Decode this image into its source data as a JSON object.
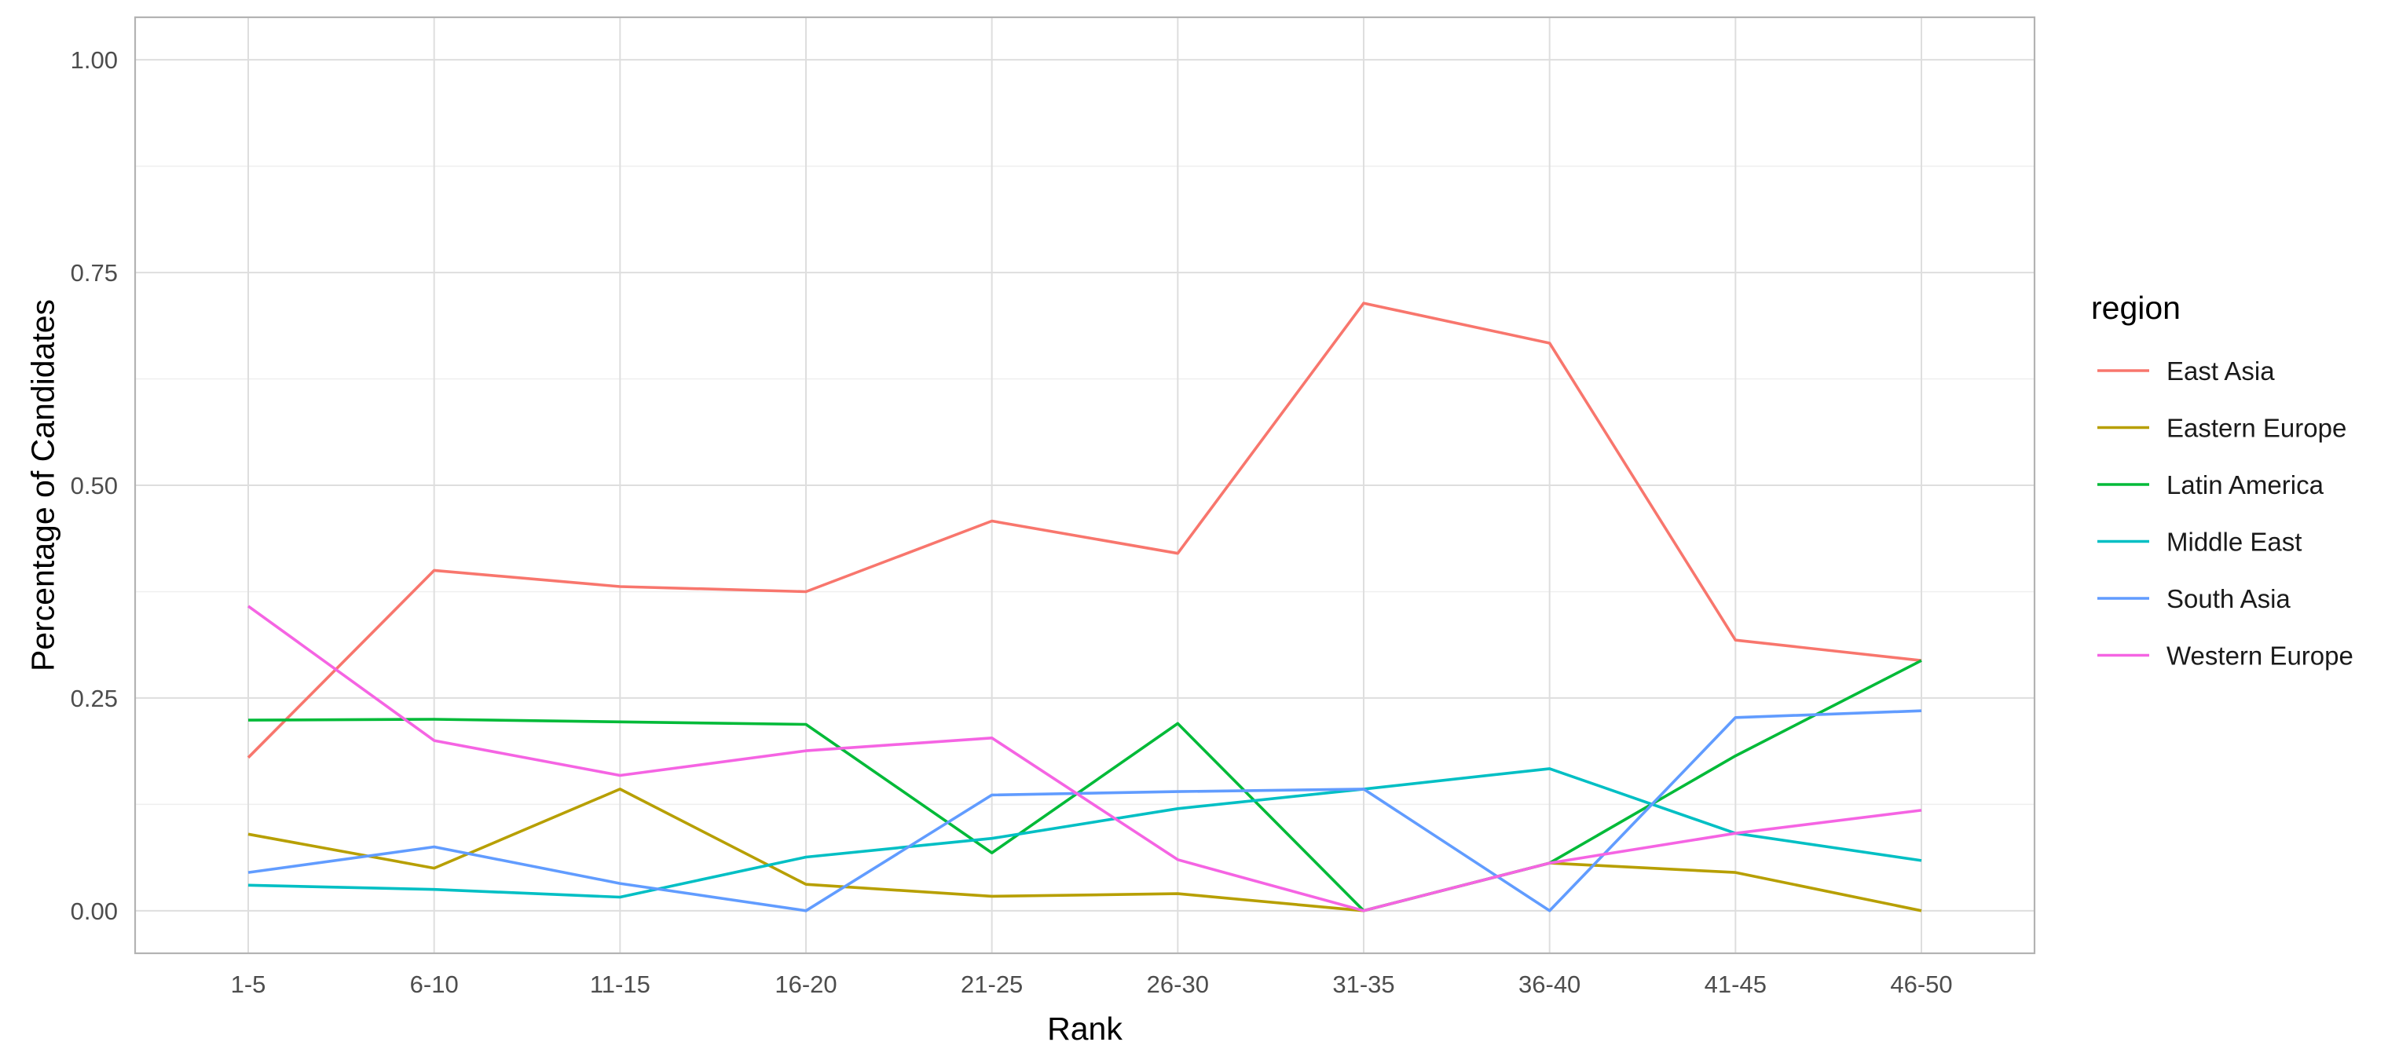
{
  "chart_data": {
    "type": "line",
    "xlabel": "Rank",
    "ylabel": "Percentage of Candidates",
    "categories": [
      "1-5",
      "6-10",
      "11-15",
      "16-20",
      "21-25",
      "26-30",
      "31-35",
      "36-40",
      "41-45",
      "46-50"
    ],
    "ylim": [
      -0.05,
      1.05
    ],
    "yticks": [
      0.0,
      0.25,
      0.5,
      0.75,
      1.0
    ],
    "ytick_labels": [
      "0.00",
      "0.25",
      "0.50",
      "0.75",
      "1.00"
    ],
    "grid": true,
    "legend": {
      "title": "region",
      "position": "right"
    },
    "series": [
      {
        "name": "East Asia",
        "color": "#F8766D",
        "values": [
          0.18,
          0.4,
          0.381,
          0.375,
          0.458,
          0.42,
          0.714,
          0.667,
          0.318,
          0.294
        ]
      },
      {
        "name": "Eastern Europe",
        "color": "#B79F00",
        "values": [
          0.09,
          0.05,
          0.143,
          0.031,
          0.017,
          0.02,
          0.0,
          0.056,
          0.045,
          0.0
        ]
      },
      {
        "name": "Latin America",
        "color": "#00BA38",
        "values": [
          0.224,
          0.225,
          0.222,
          0.219,
          0.068,
          0.22,
          0.0,
          0.056,
          0.182,
          0.294
        ]
      },
      {
        "name": "Middle East",
        "color": "#00BFC4",
        "values": [
          0.03,
          0.025,
          0.016,
          0.063,
          0.085,
          0.12,
          0.143,
          0.167,
          0.091,
          0.059
        ]
      },
      {
        "name": "South Asia",
        "color": "#619CFF",
        "values": [
          0.045,
          0.075,
          0.032,
          0.0,
          0.136,
          0.14,
          0.143,
          0.0,
          0.227,
          0.235
        ]
      },
      {
        "name": "Western Europe",
        "color": "#F564E3",
        "values": [
          0.358,
          0.2,
          0.159,
          0.188,
          0.203,
          0.06,
          0.0,
          0.056,
          0.091,
          0.118
        ]
      }
    ]
  }
}
